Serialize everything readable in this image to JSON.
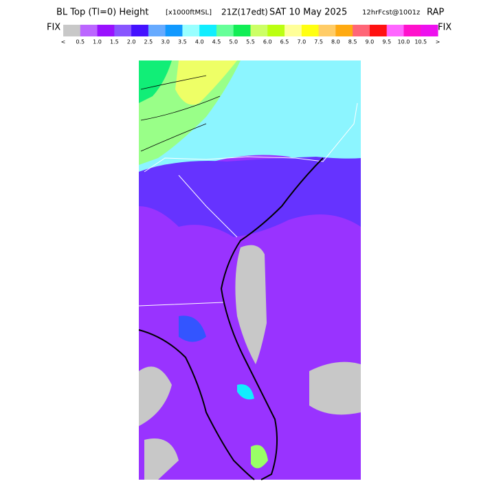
{
  "header": {
    "title": "BL Top (Tl=0) Height",
    "units": "[x1000ftMSL]",
    "valid": "21Z(17edt)",
    "date": "SAT 10 May 2025",
    "forecast": "12hrFcst@1001z",
    "model": "RAP"
  },
  "legend": {
    "left_label": "FIX",
    "right_label": "FIX",
    "colors": [
      "#c8c8c8",
      "#bb66ff",
      "#9911ff",
      "#8855ff",
      "#4411ff",
      "#66aaff",
      "#1199ff",
      "#99ffff",
      "#11eeff",
      "#66ff99",
      "#11ee55",
      "#ccff66",
      "#bbff11",
      "#ffff99",
      "#ffff11",
      "#ffcc66",
      "#ffaa11",
      "#ff6677",
      "#ff1111",
      "#ff66ff",
      "#ff11cc",
      "#ee11ee"
    ],
    "labels": [
      "<",
      "0.5",
      "1.0",
      "1.5",
      "2.0",
      "2.5",
      "3.0",
      "3.5",
      "4.0",
      "4.5",
      "5.0",
      "5.5",
      "6.0",
      "6.5",
      "7.0",
      "7.5",
      "8.0",
      "8.5",
      "9.0",
      "9.5",
      "10.0",
      "10.5",
      ">"
    ]
  }
}
